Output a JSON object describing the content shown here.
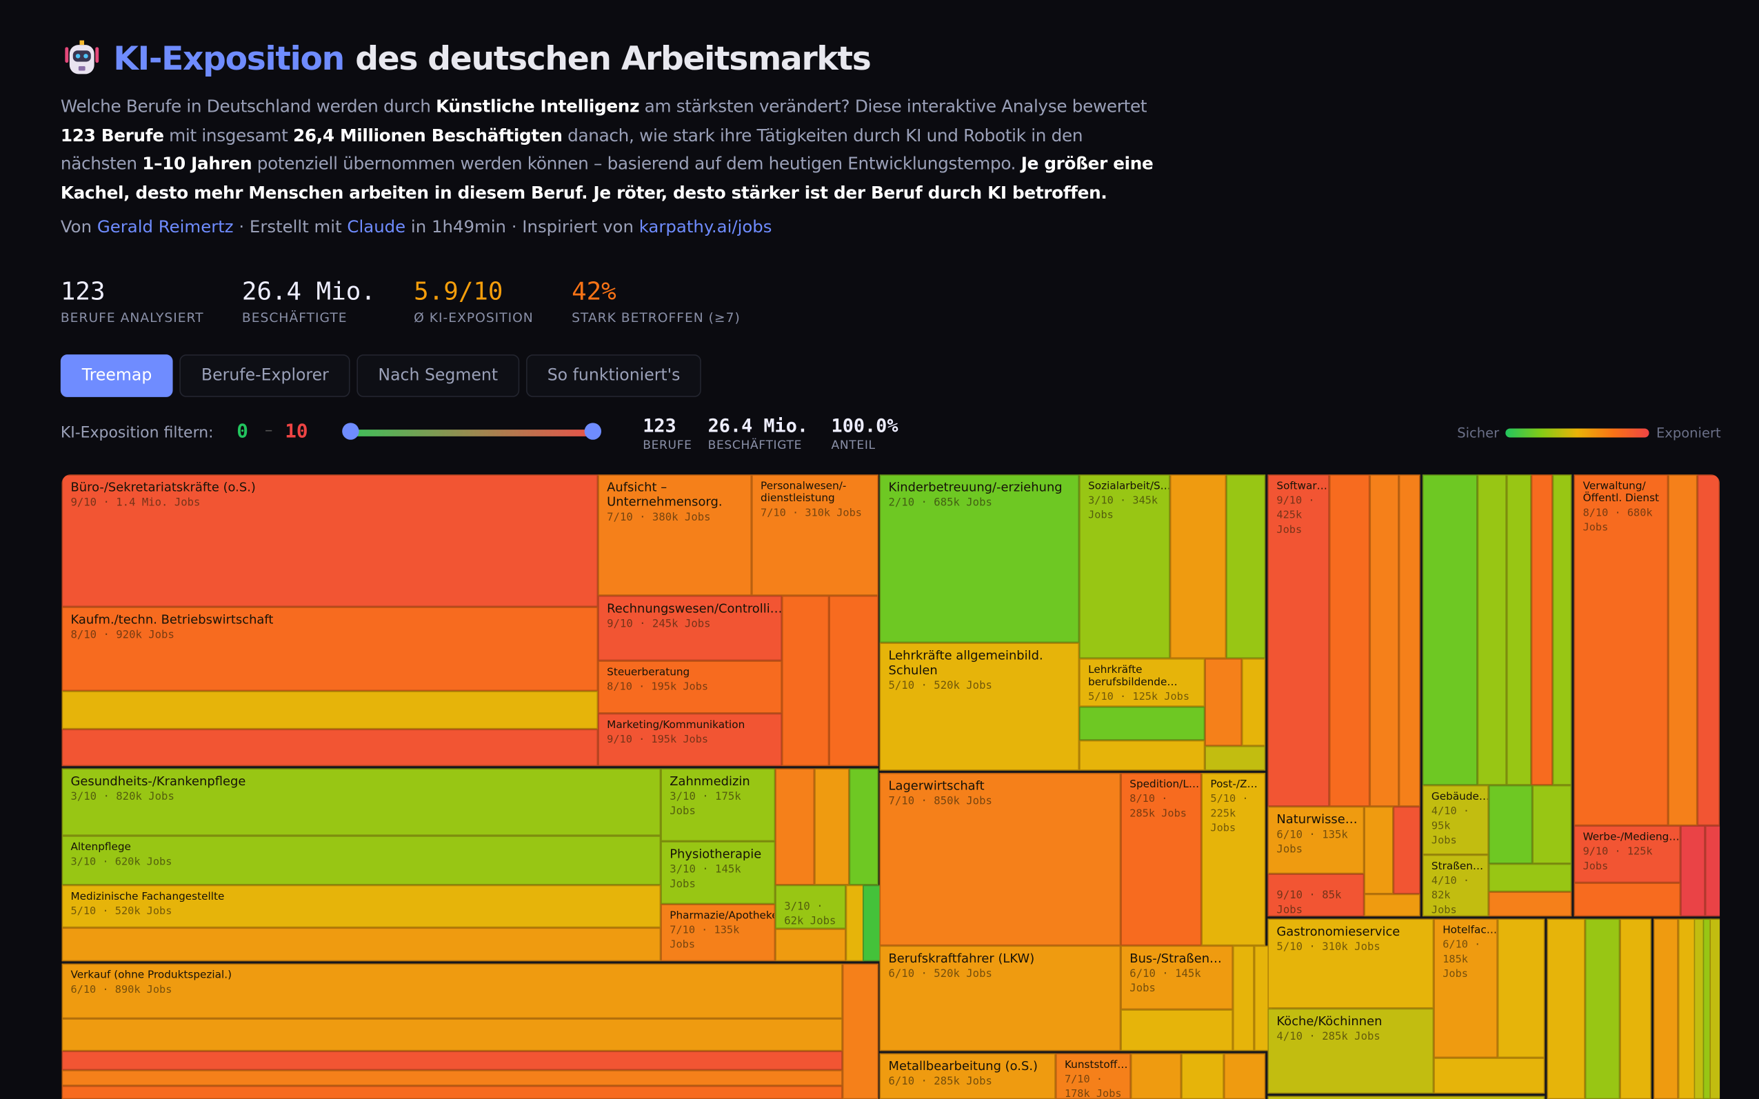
{
  "header": {
    "title_accent": "KI-Exposition",
    "title_rest": "des deutschen Arbeitsmarkts",
    "robot_icon": "robot-emoji"
  },
  "intro": {
    "p1": "Welche Berufe in Deutschland werden durch ",
    "b1": "Künstliche Intelligenz",
    "p2": " am stärksten verändert? Diese interaktive Analyse bewertet ",
    "b2": "123 Berufe",
    "p3": " mit insgesamt ",
    "b3": "26,4 Millionen Beschäftigten",
    "p4": " danach, wie stark ihre Tätigkeiten durch KI und Robotik in den nächsten ",
    "b4": "1–10 Jahren",
    "p5": " potenziell übernommen werden können – basierend auf dem heutigen Entwicklungstempo. ",
    "b5": "Je größer eine Kachel, desto mehr Menschen arbeiten in diesem Beruf. Je röter, desto stärker ist der Beruf durch KI betroffen."
  },
  "byline": {
    "von": "Von ",
    "author": "Gerald Reimertz",
    "mid": " · Erstellt mit ",
    "tool": "Claude",
    "time": " in 1h49min · Inspiriert von ",
    "link": "karpathy.ai/jobs"
  },
  "stats": [
    {
      "value": "123",
      "label": "BERUFE ANALYSIERT",
      "color": "#eeeeff"
    },
    {
      "value": "26.4 Mio.",
      "label": "BESCHÄFTIGTE",
      "color": "#eeeeff"
    },
    {
      "value": "5.9/10",
      "label": "Ø KI-EXPOSITION",
      "color": "#f59e0b"
    },
    {
      "value": "42%",
      "label": "STARK BETROFFEN (≥7)",
      "color": "#f97316"
    }
  ],
  "tabs": [
    {
      "label": "Treemap",
      "active": true
    },
    {
      "label": "Berufe-Explorer"
    },
    {
      "label": "Nach Segment"
    },
    {
      "label": "So funktioniert's"
    }
  ],
  "filter": {
    "label": "KI-Exposition filtern:",
    "min": "0",
    "sep": "–",
    "max": "10",
    "range": [
      0,
      10
    ],
    "berufe": "123",
    "berufe_label": "BERUFE",
    "beschaeftigte": "26.4 Mio.",
    "beschaeftigte_label": "BESCHÄFTIGTE",
    "anteil": "100.0%",
    "anteil_label": "ANTEIL"
  },
  "legend": {
    "low": "Sicher",
    "high": "Exponiert"
  },
  "score_colors": {
    "1": "#44c23a",
    "2": "#6ec823",
    "3": "#98c614",
    "4": "#c2bd10",
    "5": "#e6b40a",
    "6": "#ef9b10",
    "7": "#f5801a",
    "8": "#f76b1f",
    "9": "#f25533",
    "10": "#ea4346"
  },
  "treemap": {
    "tiles": [
      {
        "name": "Büro-/Sekretariatskräfte (o.S.)",
        "score": 9,
        "sub": "9/10 · 1.4 Mio. Jobs"
      },
      {
        "name": "Kaufm./techn. Betriebswirtschaft",
        "score": 8,
        "sub": "8/10 · 920k Jobs"
      },
      {
        "score": 5
      },
      {
        "score": 9
      },
      {
        "name": "Aufsicht – Unternehmensorg.",
        "score": 7,
        "sub": "7/10 · 380k Jobs"
      },
      {
        "name": "Personalwesen/-dienstleistung",
        "score": 7,
        "sub": "7/10 · 310k Jobs"
      },
      {
        "name": "Rechnungswesen/Controlli…",
        "score": 9,
        "sub": "9/10 · 245k Jobs"
      },
      {
        "name": "Steuerberatung",
        "score": 8,
        "sub": "8/10 · 195k Jobs"
      },
      {
        "name": "Marketing/Kommunikation",
        "score": 9,
        "sub": "9/10 · 195k Jobs"
      },
      {
        "score": 8
      },
      {
        "score": 8
      },
      {
        "name": "Gesundheits-/Krankenpflege",
        "score": 3,
        "sub": "3/10 · 820k Jobs"
      },
      {
        "name": "Altenpflege",
        "score": 3,
        "sub": "3/10 · 620k Jobs"
      },
      {
        "name": "Medizinische Fachangestellte",
        "score": 5,
        "sub": "5/10 · 520k Jobs"
      },
      {
        "score": 6
      },
      {
        "name": "Zahnmedizin",
        "score": 3,
        "sub": "3/10 · 175k Jobs"
      },
      {
        "name": "Physiotherapie",
        "score": 3,
        "sub": "3/10 · 145k Jobs"
      },
      {
        "name": "Pharmazie/Apotheke",
        "score": 7,
        "sub": "7/10 · 135k Jobs"
      },
      {
        "score": 7
      },
      {
        "score": 6
      },
      {
        "score": 2
      },
      {
        "score": 3,
        "sub": "3/10 · 62k Jobs"
      },
      {
        "score": 6
      },
      {
        "score": 5
      },
      {
        "score": 1
      },
      {
        "name": "Verkauf (ohne Produktspezial.)",
        "score": 6,
        "sub": "6/10 · 890k Jobs"
      },
      {
        "score": 6
      },
      {
        "score": 9
      },
      {
        "score": 7
      },
      {
        "score": 8
      },
      {
        "score": 7
      },
      {
        "name": "Kinderbetreuung/-erziehung",
        "score": 2,
        "sub": "2/10 · 685k Jobs"
      },
      {
        "name": "Lehrkräfte allgemeinbild. Schulen",
        "score": 5,
        "sub": "5/10 · 520k Jobs"
      },
      {
        "name": "Sozialarbeit/S…",
        "score": 3,
        "sub": "3/10 · 345k Jobs"
      },
      {
        "score": 6
      },
      {
        "score": 3
      },
      {
        "name": "Lehrkräfte berufsbildende…",
        "score": 5,
        "sub": "5/10 · 125k Jobs"
      },
      {
        "score": 2
      },
      {
        "score": 5
      },
      {
        "score": 7
      },
      {
        "score": 5
      },
      {
        "score": 4
      },
      {
        "name": "Lagerwirtschaft",
        "score": 7,
        "sub": "7/10 · 850k Jobs"
      },
      {
        "name": "Spedition/L…",
        "score": 8,
        "sub": "8/10 · 285k Jobs"
      },
      {
        "name": "Post-/Z…",
        "score": 5,
        "sub": "5/10 · 225k Jobs"
      },
      {
        "name": "Berufskraftfahrer (LKW)",
        "score": 6,
        "sub": "6/10 · 520k Jobs"
      },
      {
        "name": "Bus-/Straßen…",
        "score": 6,
        "sub": "6/10 · 145k Jobs"
      },
      {
        "score": 5
      },
      {
        "score": 5
      },
      {
        "score": 5
      },
      {
        "name": "Metallbearbeitung (o.S.)",
        "score": 6,
        "sub": "6/10 · 285k Jobs"
      },
      {
        "name": "Kunststoff…",
        "score": 7,
        "sub": "7/10 · 178k Jobs"
      },
      {
        "score": 6
      },
      {
        "score": 5
      },
      {
        "score": 6
      },
      {
        "name": "Softwar…",
        "score": 9,
        "sub": "9/10 · 425k Jobs"
      },
      {
        "score": 8
      },
      {
        "score": 7
      },
      {
        "score": 7
      },
      {
        "name": "Naturwisse…",
        "score": 6,
        "sub": "6/10 · 135k Jobs"
      },
      {
        "score": 9,
        "sub": "9/10 · 85k Jobs"
      },
      {
        "score": 6
      },
      {
        "score": 9
      },
      {
        "score": 6
      },
      {
        "score": 2
      },
      {
        "score": 3
      },
      {
        "score": 3
      },
      {
        "score": 8
      },
      {
        "score": 3
      },
      {
        "name": "Gebäude…",
        "score": 4,
        "sub": "4/10 · 95k Jobs"
      },
      {
        "name": "Straßen…",
        "score": 4,
        "sub": "4/10 · 82k Jobs"
      },
      {
        "score": 2
      },
      {
        "score": 3
      },
      {
        "score": 3
      },
      {
        "score": 7
      },
      {
        "name": "Verwaltung/ Öffentl. Dienst",
        "score": 8,
        "sub": "8/10 · 680k Jobs"
      },
      {
        "score": 7
      },
      {
        "score": 9
      },
      {
        "name": "Werbe-/Medieng…",
        "score": 9,
        "sub": "9/10 · 125k Jobs"
      },
      {
        "score": 8
      },
      {
        "score": 10
      },
      {
        "score": 10
      },
      {
        "name": "Gastronomieservice",
        "score": 5,
        "sub": "5/10 · 310k Jobs"
      },
      {
        "name": "Köche/Köchinnen",
        "score": 4,
        "sub": "4/10 · 285k Jobs"
      },
      {
        "name": "Hotelfac…",
        "score": 6,
        "sub": "6/10 · 185k Jobs"
      },
      {
        "score": 5
      },
      {
        "score": 5
      },
      {
        "score": 4
      },
      {
        "score": 5
      },
      {
        "score": 3
      },
      {
        "score": 5
      },
      {
        "score": 6
      },
      {
        "score": 5
      },
      {
        "score": 4
      },
      {
        "score": 3
      },
      {
        "score": 4
      }
    ]
  }
}
